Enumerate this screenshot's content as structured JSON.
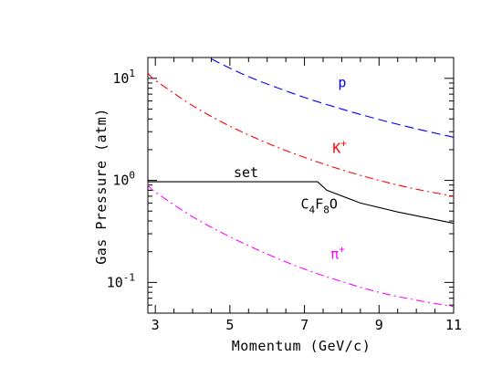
{
  "chart_data": {
    "type": "line",
    "xlabel": "Momentum (GeV/c)",
    "ylabel": "Gas Pressure (atm)",
    "xlim": [
      2.8,
      11
    ],
    "ylim": [
      0.05,
      16
    ],
    "yscale": "log",
    "grid": false,
    "x_ticks": [
      "3",
      "5",
      "7",
      "9",
      "11"
    ],
    "y_ticks": [
      {
        "value": 0.1,
        "base": "10",
        "exp": "-1"
      },
      {
        "value": 1,
        "base": "10",
        "exp": "0"
      },
      {
        "value": 10,
        "base": "10",
        "exp": "1"
      }
    ],
    "series": [
      {
        "label": {
          "main": "p",
          "sup": "",
          "sub": ""
        },
        "label_at": [
          7.9,
          8.2
        ],
        "color": "#0000ff",
        "style": "dashed",
        "x": [
          4.5,
          5.0,
          5.5,
          6.0,
          7.0,
          8.0,
          9.0,
          10.0,
          11.0
        ],
        "y": [
          15.5,
          12.6,
          10.4,
          8.8,
          6.5,
          5.0,
          3.95,
          3.2,
          2.65
        ]
      },
      {
        "label": {
          "main": "K",
          "sup": "+",
          "sub": ""
        },
        "label_at": [
          7.75,
          1.85
        ],
        "color": "#ff0000",
        "style": "dashdot",
        "x": [
          2.8,
          3.0,
          4.0,
          5.0,
          6.0,
          7.0,
          8.0,
          9.0,
          10.0,
          11.0
        ],
        "y": [
          11.3,
          9.6,
          5.4,
          3.4,
          2.32,
          1.68,
          1.27,
          1.0,
          0.82,
          0.7
        ]
      },
      {
        "label": {
          "main": "π",
          "sup": "+",
          "sub": ""
        },
        "label_at": [
          7.7,
          0.17
        ],
        "color": "#ff00ff",
        "style": "dashdot",
        "x": [
          2.8,
          3.0,
          4.0,
          5.0,
          6.0,
          7.0,
          8.0,
          9.0,
          10.0,
          11.0
        ],
        "y": [
          0.9,
          0.77,
          0.44,
          0.28,
          0.19,
          0.135,
          0.102,
          0.08,
          0.067,
          0.058
        ]
      },
      {
        "label": {
          "main": "set",
          "sup": "",
          "sub": ""
        },
        "label_at": [
          5.1,
          1.08
        ],
        "color": "#000000",
        "style": "solid",
        "x": [
          2.8,
          7.35,
          7.6,
          8.5,
          9.5,
          11.0
        ],
        "y": [
          0.97,
          0.97,
          0.8,
          0.6,
          0.49,
          0.38
        ]
      }
    ],
    "annotations": [
      {
        "text": {
          "main": "C",
          "sub": "4",
          "main2": "F",
          "sub2": "8",
          "main3": "O"
        },
        "at": [
          6.9,
          0.53
        ],
        "color": "#000000"
      }
    ]
  }
}
